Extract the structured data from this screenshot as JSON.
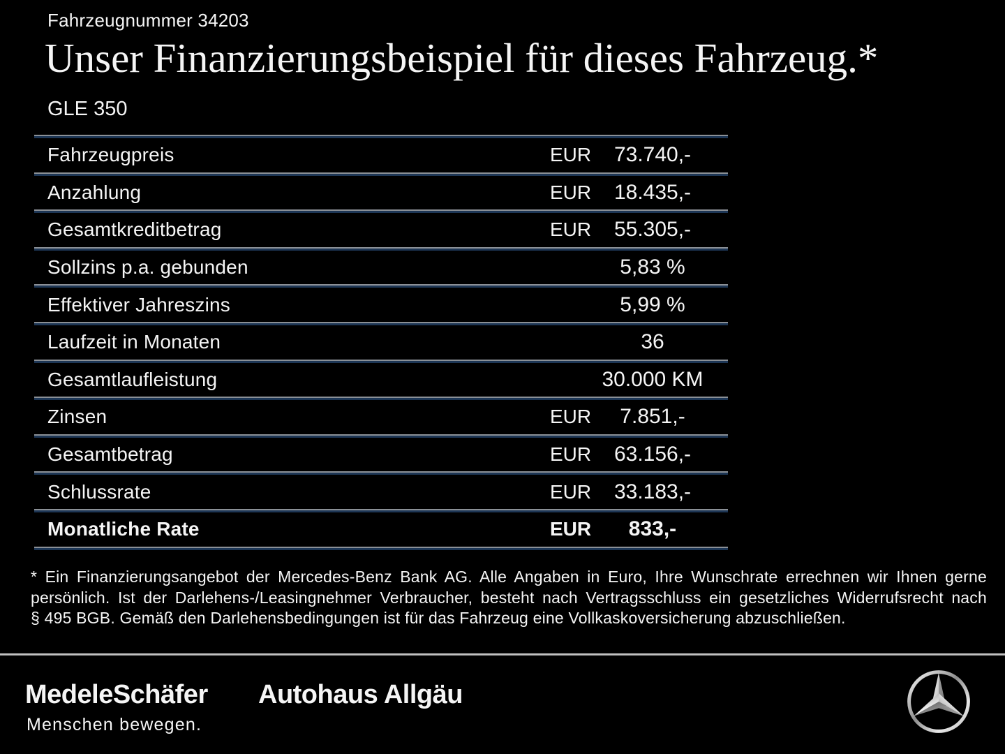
{
  "header": {
    "vehicle_number": "Fahrzeugnummer 34203",
    "title": "Unser Finanzierungsbeispiel für dieses Fahrzeug.*",
    "model": "GLE 350"
  },
  "table": {
    "rows": [
      {
        "label": "Fahrzeugpreis",
        "currency": "EUR",
        "value": "73.740,-",
        "bold": false
      },
      {
        "label": "Anzahlung",
        "currency": "EUR",
        "value": "18.435,-",
        "bold": false
      },
      {
        "label": "Gesamtkreditbetrag",
        "currency": "EUR",
        "value": "55.305,-",
        "bold": false
      },
      {
        "label": "Sollzins p.a. gebunden",
        "currency": "",
        "value": "5,83 %",
        "bold": false
      },
      {
        "label": "Effektiver Jahreszins",
        "currency": "",
        "value": "5,99 %",
        "bold": false
      },
      {
        "label": "Laufzeit in Monaten",
        "currency": "",
        "value": "36",
        "bold": false
      },
      {
        "label": "Gesamtlaufleistung",
        "currency": "",
        "value": "30.000 KM",
        "bold": false
      },
      {
        "label": "Zinsen",
        "currency": "EUR",
        "value": "7.851,-",
        "bold": false
      },
      {
        "label": "Gesamtbetrag",
        "currency": "EUR",
        "value": "63.156,-",
        "bold": false
      },
      {
        "label": "Schlussrate",
        "currency": "EUR",
        "value": "33.183,-",
        "bold": false
      },
      {
        "label": "Monatliche Rate",
        "currency": "EUR",
        "value": "833,-",
        "bold": true
      }
    ]
  },
  "footnote": {
    "lines": [
      "* Ein Finanzierungsangebot der Mercedes-Benz Bank AG. Alle Angaben in Euro, Ihre Wunschrate errechnen wir Ihnen gerne",
      "persönlich. Ist der Darlehens-/Leasingnehmer Verbraucher, besteht nach Vertragsschluss ein gesetzliches Widerrufsrecht nach",
      "§ 495 BGB. Gemäß den Darlehensbedingungen ist für das Fahrzeug eine Vollkaskoversicherung abzuschließen."
    ]
  },
  "footer": {
    "dealer_primary": "MedeleSchäfer",
    "dealer_tagline": "Menschen bewegen.",
    "dealer_secondary": "Autohaus Allgäu",
    "brand_icon": "mercedes-star-icon"
  },
  "colors": {
    "background": "#000000",
    "text": "#f5f5f5",
    "separator_gray": "#8b9096",
    "separator_blue": "#1d3655",
    "footer_divider_top": "#f2f2f2",
    "footer_divider_bottom": "#8c8c8c"
  }
}
